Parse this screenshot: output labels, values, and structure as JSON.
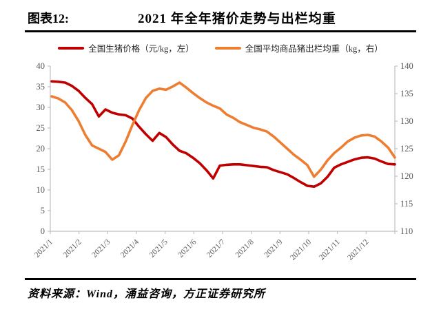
{
  "header": {
    "label": "图表12:",
    "title": "2021 年全年猪价走势与出栏均重"
  },
  "legend": [
    {
      "label": "全国生猪价格（元/kg，左）",
      "color": "#c00000"
    },
    {
      "label": "全国平均商品猪出栏均重（kg，右）",
      "color": "#ed7d31"
    }
  ],
  "footer": {
    "source": "资料来源：Wind，涌益咨询，方正证券研究所"
  },
  "chart_data": {
    "type": "line",
    "title": "2021 年全年猪价走势与出栏均重",
    "x_labels": [
      "2021/1",
      "2021/2",
      "2021/3",
      "2021/4",
      "2021/5",
      "2021/6",
      "2021/7",
      "2021/8",
      "2021/9",
      "2021/10",
      "2021/11",
      "2021/12"
    ],
    "left_axis": {
      "label": "元/kg",
      "min": 0,
      "max": 40,
      "step": 5,
      "ticks": [
        0,
        5,
        10,
        15,
        20,
        25,
        30,
        35,
        40
      ]
    },
    "right_axis": {
      "label": "kg",
      "min": 110,
      "max": 140,
      "step": 5,
      "ticks": [
        110,
        115,
        120,
        125,
        130,
        135,
        140
      ]
    },
    "grid": false,
    "legend_position": "top",
    "series": [
      {
        "name": "全国生猪价格（元/kg，左）",
        "axis": "left",
        "color": "#c00000",
        "values": [
          36.3,
          36.2,
          36.0,
          35.2,
          34.0,
          32.3,
          30.8,
          27.8,
          29.5,
          28.7,
          28.3,
          28.1,
          27.3,
          25.3,
          23.5,
          21.9,
          23.8,
          22.8,
          21.0,
          19.5,
          18.9,
          17.8,
          16.5,
          14.8,
          12.8,
          15.9,
          16.1,
          16.2,
          16.2,
          16.0,
          15.8,
          15.6,
          15.5,
          14.8,
          14.3,
          13.8,
          12.9,
          11.9,
          11.0,
          10.8,
          11.6,
          13.2,
          15.4,
          16.2,
          16.8,
          17.4,
          17.8,
          17.9,
          17.6,
          16.9,
          16.3,
          16.2
        ]
      },
      {
        "name": "全国平均商品猪出栏均重（kg，右）",
        "axis": "right",
        "color": "#ed7d31",
        "values": [
          134.5,
          134.1,
          133.4,
          132.0,
          130.0,
          127.5,
          125.6,
          125.0,
          124.4,
          123.0,
          123.8,
          126.3,
          129.3,
          132.0,
          134.2,
          135.5,
          135.9,
          135.7,
          136.3,
          137.0,
          136.1,
          135.1,
          134.2,
          133.4,
          132.8,
          132.3,
          131.2,
          130.6,
          129.8,
          129.3,
          128.8,
          128.5,
          128.1,
          127.2,
          126.1,
          125.0,
          123.9,
          123.0,
          122.0,
          119.9,
          121.2,
          122.9,
          124.2,
          125.2,
          126.3,
          127.0,
          127.4,
          127.5,
          127.2,
          126.3,
          125.2,
          123.4
        ]
      }
    ]
  },
  "style": {
    "spine_color": "#bfbfbf",
    "axis_text_color": "#595959"
  }
}
